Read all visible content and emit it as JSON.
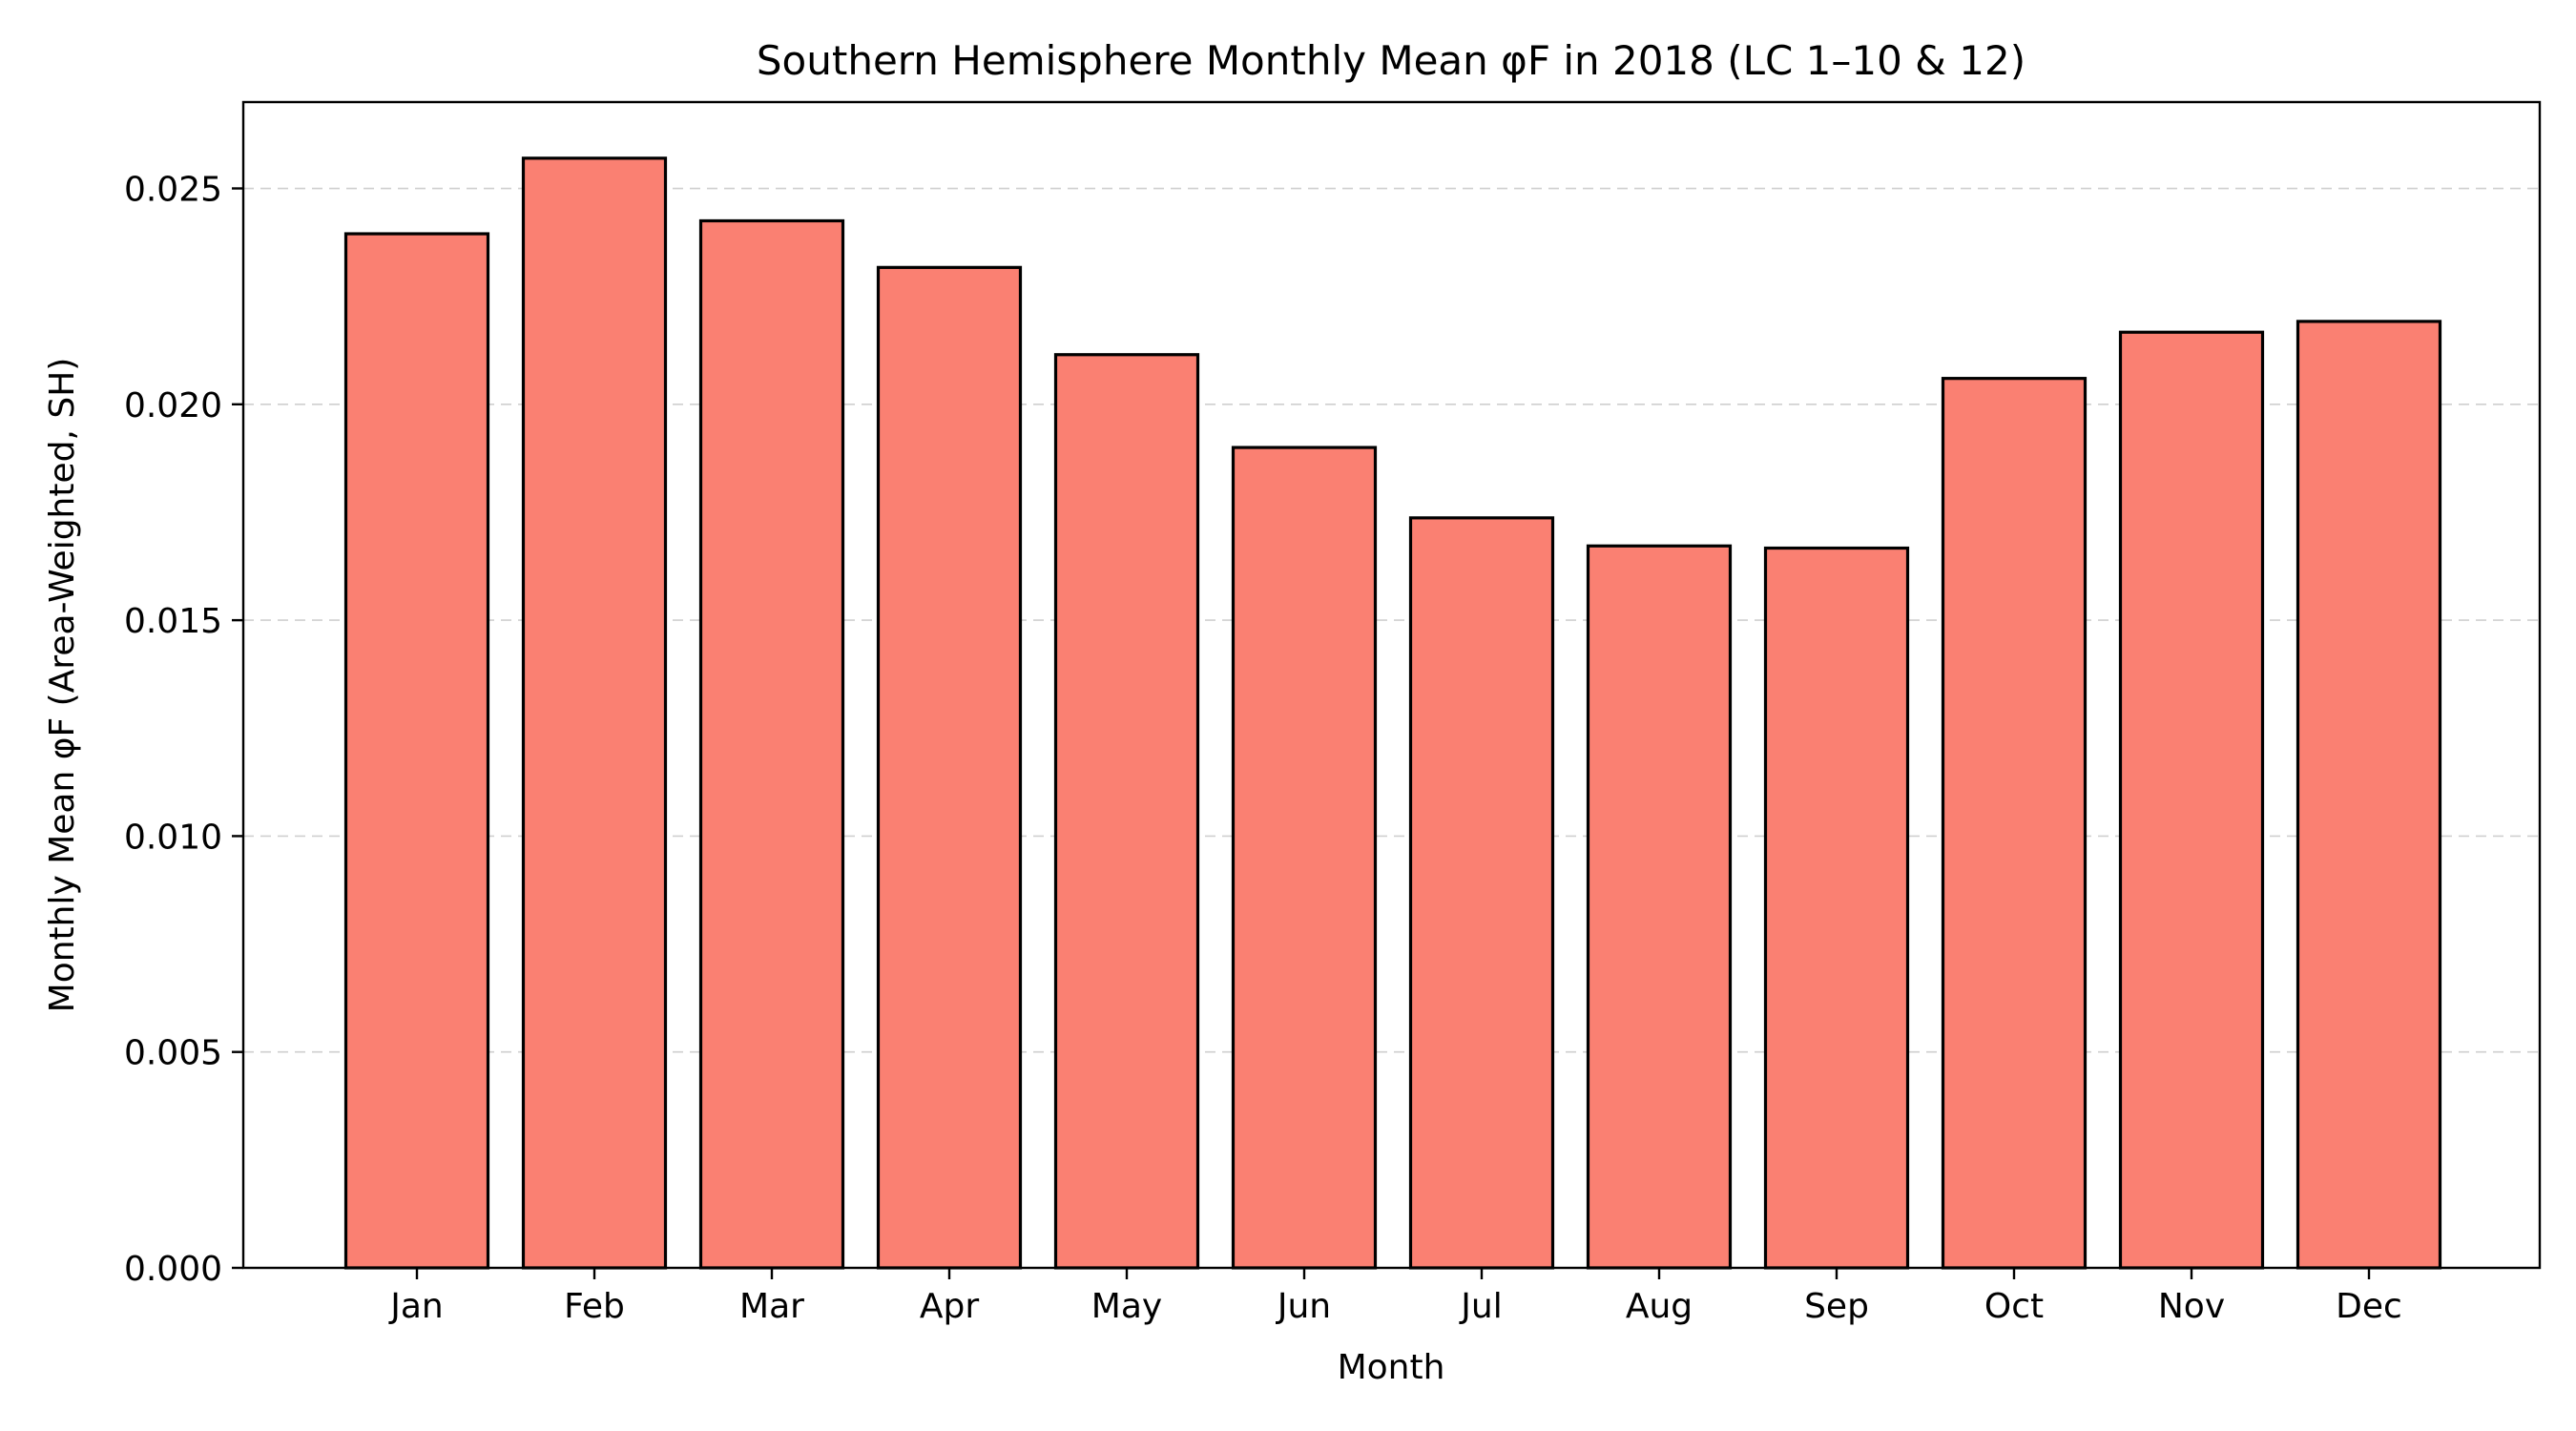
{
  "chart_data": {
    "type": "bar",
    "title": "Southern Hemisphere Monthly Mean φF in 2018 (LC 1–10 & 12)",
    "xlabel": "Month",
    "ylabel": "Monthly Mean φF (Area-Weighted, SH)",
    "categories": [
      "Jan",
      "Feb",
      "Mar",
      "Apr",
      "May",
      "Jun",
      "Jul",
      "Aug",
      "Sep",
      "Oct",
      "Nov",
      "Dec"
    ],
    "values": [
      0.02395,
      0.0257,
      0.02425,
      0.02317,
      0.02115,
      0.019,
      0.01737,
      0.01672,
      0.01667,
      0.0206,
      0.02167,
      0.02192
    ],
    "ylim": [
      0.0,
      0.027
    ],
    "yticks": [
      0.0,
      0.005,
      0.01,
      0.015,
      0.02,
      0.025
    ],
    "ytick_labels": [
      "0.000",
      "0.005",
      "0.010",
      "0.015",
      "0.020",
      "0.025"
    ],
    "bar_color": "#fa8072",
    "edge_color": "#000000",
    "grid": "y-dashed",
    "legend": "none"
  }
}
